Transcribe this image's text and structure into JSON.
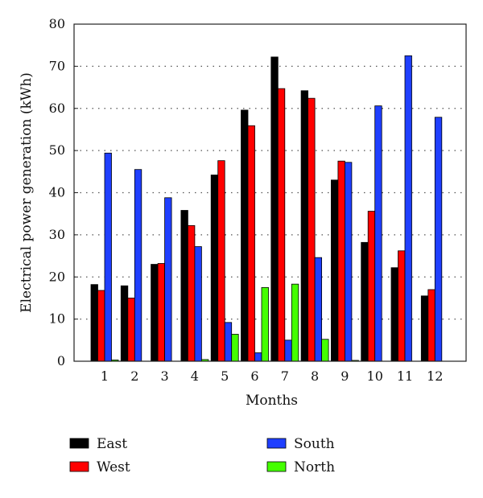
{
  "chart_data": {
    "type": "bar",
    "title": "",
    "xlabel": "Months",
    "ylabel": "Electrical power generation (kWh)",
    "categories": [
      "1",
      "2",
      "3",
      "4",
      "5",
      "6",
      "7",
      "8",
      "9",
      "10",
      "11",
      "12"
    ],
    "yticks": [
      "0",
      "10",
      "20",
      "30",
      "40",
      "50",
      "60",
      "70",
      "80"
    ],
    "ylim": [
      0,
      80
    ],
    "grid": "horizontal dotted",
    "legend_placement": "bottom",
    "series": [
      {
        "name": "East",
        "color": "#000000",
        "values": [
          18.2,
          17.9,
          23.0,
          35.8,
          44.2,
          59.6,
          72.2,
          64.2,
          43.0,
          28.2,
          22.2,
          15.5
        ]
      },
      {
        "name": "West",
        "color": "#ff0000",
        "values": [
          16.8,
          15.0,
          23.2,
          32.2,
          47.6,
          55.9,
          64.7,
          62.4,
          47.5,
          35.6,
          26.2,
          17.0
        ]
      },
      {
        "name": "South",
        "color": "#1f3fff",
        "values": [
          49.4,
          45.5,
          38.8,
          27.2,
          9.2,
          2.0,
          5.0,
          24.6,
          47.2,
          60.6,
          72.5,
          57.9
        ]
      },
      {
        "name": "North",
        "color": "#44ff00",
        "values": [
          0.3,
          0.0,
          0.0,
          0.4,
          6.4,
          17.5,
          18.3,
          5.2,
          0.2,
          0.0,
          0.0,
          0.0
        ]
      }
    ]
  }
}
